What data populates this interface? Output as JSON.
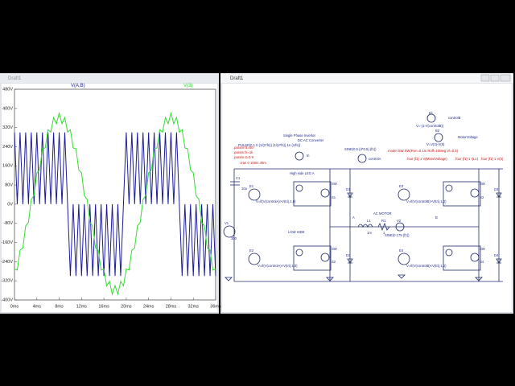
{
  "plot_window": {
    "title": "Draft1",
    "chart_data": {
      "type": "line",
      "x": [
        0,
        0.5,
        1,
        1.5,
        2,
        2.5,
        3,
        3.5,
        4,
        4.5,
        5,
        5.5,
        6,
        6.5,
        7,
        7.5,
        8,
        8.5,
        9,
        9.5,
        10,
        10.5,
        11,
        11.5,
        12,
        12.5,
        13,
        13.5,
        14,
        14.5,
        15,
        15.5,
        16,
        16.5,
        17,
        17.5,
        18,
        18.5,
        19,
        19.5,
        20,
        20.5,
        21,
        21.5,
        22,
        22.5,
        23,
        23.5,
        24,
        24.5,
        25,
        25.5,
        26,
        26.5,
        27,
        27.5,
        28,
        28.5,
        29,
        29.5,
        30,
        30.5,
        31,
        31.5,
        32,
        32.5,
        33,
        33.5,
        34,
        34.5,
        35,
        35.5,
        36
      ],
      "series": [
        {
          "name": "V(A,B)",
          "color": "#1c1c9a",
          "values": [
            300,
            0,
            300,
            0,
            300,
            0,
            300,
            0,
            300,
            0,
            300,
            0,
            300,
            0,
            300,
            0,
            300,
            0,
            300,
            0,
            -300,
            0,
            -300,
            0,
            -300,
            0,
            -300,
            0,
            -300,
            0,
            -300,
            0,
            -300,
            0,
            -300,
            0,
            -300,
            0,
            -300,
            0,
            300,
            0,
            300,
            0,
            300,
            0,
            300,
            0,
            300,
            0,
            300,
            0,
            300,
            0,
            300,
            0,
            300,
            0,
            300,
            0,
            -300,
            0,
            -300,
            0,
            -300,
            0,
            -300,
            0,
            -300,
            0,
            -300,
            0,
            -300
          ]
        },
        {
          "name": "V(3)",
          "color": "#33dd33",
          "values": [
            -271,
            -275,
            -192,
            -183,
            -91,
            -76,
            20,
            36,
            131,
            143,
            232,
            235,
            311,
            301,
            362,
            336,
            380,
            336,
            362,
            301,
            311,
            235,
            232,
            143,
            131,
            36,
            20,
            -76,
            -91,
            -183,
            -192,
            -275,
            -271,
            -341,
            -322,
            -376,
            -340,
            -376,
            -322,
            -341,
            -271,
            -275,
            -192,
            -183,
            -91,
            -76,
            20,
            36,
            131,
            143,
            232,
            235,
            311,
            301,
            362,
            336,
            380,
            336,
            362,
            301,
            311,
            235,
            232,
            143,
            131,
            36,
            20,
            -76,
            -91,
            -183,
            -192,
            -275,
            -271
          ]
        }
      ],
      "xlim": [
        0,
        36
      ],
      "ylim": [
        -400,
        480
      ],
      "xticks": [
        {
          "value": 0,
          "label": "0ms"
        },
        {
          "value": 4,
          "label": "4ms"
        },
        {
          "value": 8,
          "label": "8ms"
        },
        {
          "value": 12,
          "label": "12ms"
        },
        {
          "value": 16,
          "label": "16ms"
        },
        {
          "value": 20,
          "label": "20ms"
        },
        {
          "value": 24,
          "label": "24ms"
        },
        {
          "value": 28,
          "label": "28ms"
        },
        {
          "value": 32,
          "label": "32ms"
        },
        {
          "value": 36,
          "label": "36ms"
        }
      ],
      "yticks": [
        {
          "value": -400,
          "label": "-400V"
        },
        {
          "value": -320,
          "label": "-320V"
        },
        {
          "value": -240,
          "label": "-240V"
        },
        {
          "value": -160,
          "label": "-160V"
        },
        {
          "value": -80,
          "label": "-80V"
        },
        {
          "value": 0,
          "label": "0V"
        },
        {
          "value": 80,
          "label": "80V"
        },
        {
          "value": 160,
          "label": "160V"
        },
        {
          "value": 240,
          "label": "240V"
        },
        {
          "value": 320,
          "label": "320V"
        },
        {
          "value": 400,
          "label": "400V"
        },
        {
          "value": 480,
          "label": "480V"
        }
      ]
    }
  },
  "schematic_window": {
    "title": "Draft1",
    "labels": [
      "B1",
      "controlB",
      "V=-(1-V(controlB))",
      "B2",
      "MotorVoltage",
      "V=V(3)-V(5)",
      "Single Phase Inverter",
      "DC AC Converter",
      "PULSE(0 1 0 {1/(2*fs)} {1/(2*fs)} 1n {1/fs})",
      "tri",
      "SINE(0.5 {d*0.5} {f1})",
      "controlA",
      "High side LEG A",
      "C1",
      "10u",
      "V1",
      "300",
      "LOW SIDE",
      "AC MOTOR",
      "L1",
      "1m",
      "R1",
      "1",
      "V2",
      "SINE(0 175 {f1})",
      "V=if(V(controlA)>V(tri),1,0)",
      "V=if(V(controlA)<V(tri),1,0)",
      "V=if(V(controlB)>V(tri),1,0)",
      "V=if(V(controlB)<V(tri),1,0)",
      "E1",
      "E2",
      "E3",
      "E4",
      "S1",
      "S2",
      "S3",
      "S4",
      "D1",
      "D2",
      "D3",
      "D4",
      "SW",
      "SW",
      "SW",
      "SW",
      "A",
      "B"
    ],
    "directives": [
      ".param f1=50",
      ".param fs=1k",
      ".param d=0.9",
      ".tran 0 100m 40m",
      ".model SW SW(Ron=0.1m Roff=10Meg Vt=0.5)",
      ".four {f1} 1 V(MotorVoltage)",
      ".four {f1} 1 I(L1)",
      ".four {f1} 1 V(3)"
    ]
  }
}
